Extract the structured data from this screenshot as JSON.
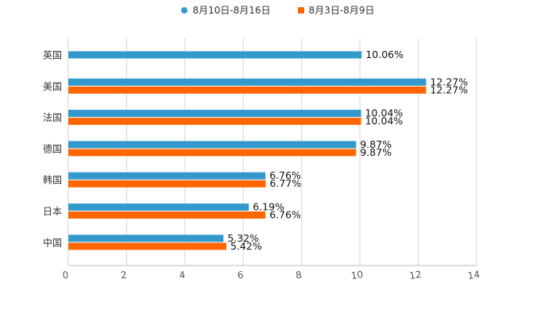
{
  "chart_data": {
    "type": "bar",
    "orientation": "horizontal",
    "categories": [
      "英国",
      "美国",
      "法国",
      "德国",
      "韩国",
      "日本",
      "中国"
    ],
    "series": [
      {
        "name": "8月10日-8月16日",
        "color": "#3399cc",
        "marker": "circle",
        "values": [
          10.06,
          12.27,
          10.04,
          9.87,
          6.76,
          6.19,
          5.32
        ],
        "labels": [
          "10.06%",
          "12.27%",
          "10.04%",
          "9.87%",
          "6.76%",
          "6.19%",
          "5.32%"
        ]
      },
      {
        "name": "8月3日-8月9日",
        "color": "#ff6600",
        "marker": "square",
        "values": [
          null,
          12.27,
          10.04,
          9.87,
          6.77,
          6.76,
          5.42
        ],
        "labels": [
          null,
          "12.27%",
          "10.04%",
          "9.87%",
          "6.77%",
          "6.76%",
          "5.42%"
        ]
      }
    ],
    "xlim": [
      0,
      14
    ],
    "xticks": [
      0,
      2,
      4,
      6,
      8,
      10,
      12,
      14
    ],
    "xtick_labels": [
      "0",
      "2",
      "4",
      "6",
      "8",
      "10",
      "12",
      "14"
    ],
    "grid": true,
    "legend_position": "top-center"
  }
}
